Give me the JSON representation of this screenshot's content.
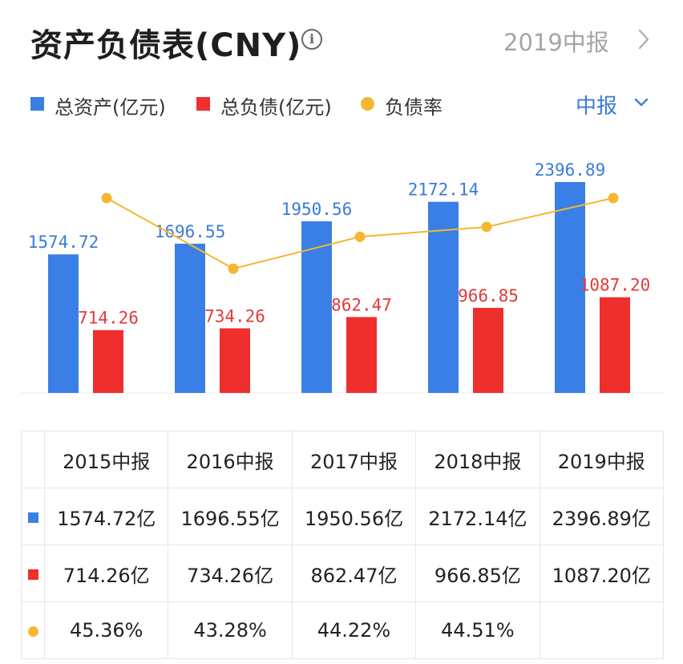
{
  "header": {
    "title": "资产负债表(CNY)",
    "period": "2019中报"
  },
  "legend": {
    "items": [
      {
        "label": "总资产(亿元)",
        "color": "#3a7fe6",
        "shape": "square"
      },
      {
        "label": "总负债(亿元)",
        "color": "#ef2e2e",
        "shape": "square"
      },
      {
        "label": "负债率",
        "color": "#f5b731",
        "shape": "dot"
      }
    ],
    "frequency": "中报"
  },
  "chart_data": {
    "type": "bar",
    "categories": [
      "2015中报",
      "2016中报",
      "2017中报",
      "2018中报",
      "2019中报"
    ],
    "series": [
      {
        "name": "总资产(亿元)",
        "type": "bar",
        "color": "#3a7fe6",
        "values": [
          1574.72,
          1696.55,
          1950.56,
          2172.14,
          2396.89
        ],
        "labels": [
          "1574.72",
          "1696.55",
          "1950.56",
          "2172.14",
          "2396.89"
        ]
      },
      {
        "name": "总负债(亿元)",
        "type": "bar",
        "color": "#ef2e2e",
        "values": [
          714.26,
          734.26,
          862.47,
          966.85,
          1087.2
        ],
        "labels": [
          "714.26",
          "734.26",
          "862.47",
          "966.85",
          "1087.20"
        ]
      },
      {
        "name": "负债率",
        "type": "line",
        "color": "#f5b731",
        "values": [
          45.36,
          43.28,
          44.22,
          44.51,
          45.36
        ]
      }
    ],
    "grid": false
  },
  "table": {
    "headers": [
      "2015中报",
      "2016中报",
      "2017中报",
      "2018中报",
      "2019中报"
    ],
    "rows": [
      {
        "marker": "square",
        "color": "#3a7fe6",
        "cells": [
          "1574.72亿",
          "1696.55亿",
          "1950.56亿",
          "2172.14亿",
          "2396.89亿"
        ]
      },
      {
        "marker": "square",
        "color": "#ef2e2e",
        "cells": [
          "714.26亿",
          "734.26亿",
          "862.47亿",
          "966.85亿",
          "1087.20亿"
        ]
      },
      {
        "marker": "dot",
        "color": "#f5b731",
        "cells": [
          "45.36%",
          "43.28%",
          "44.22%",
          "44.51%",
          ""
        ]
      }
    ]
  }
}
